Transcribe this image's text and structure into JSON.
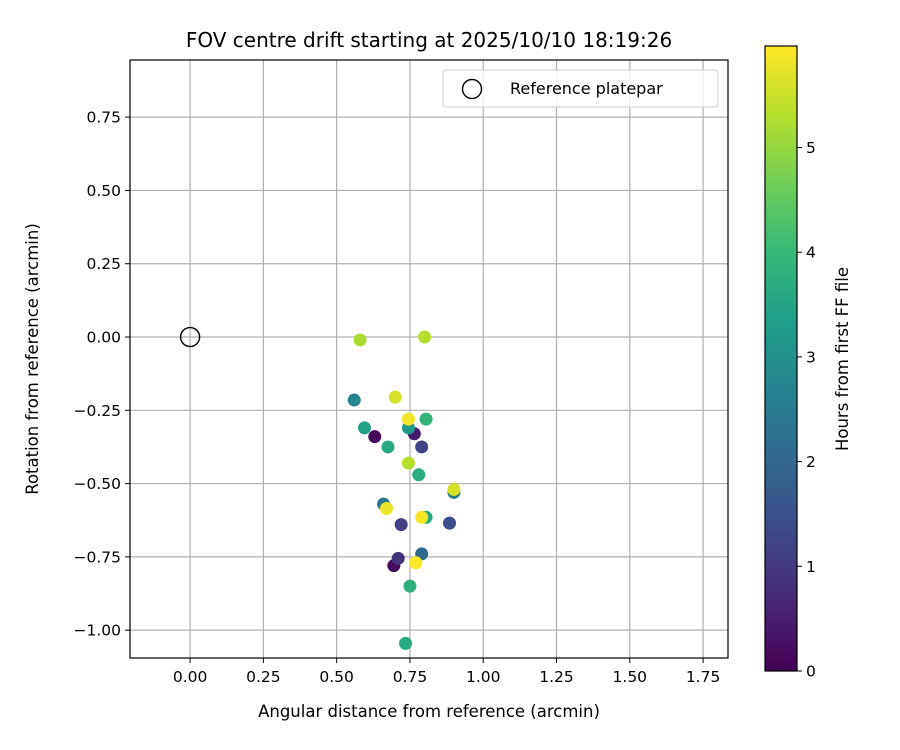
{
  "chart_data": {
    "type": "scatter",
    "title": "FOV centre drift starting at 2025/10/10 18:19:26",
    "xlabel": "Angular distance from reference (arcmin)",
    "ylabel": "Rotation from reference (arcmin)",
    "xlim": [
      -0.205,
      1.835
    ],
    "ylim": [
      -1.095,
      0.945
    ],
    "x_ticks": [
      0.0,
      0.25,
      0.5,
      0.75,
      1.0,
      1.25,
      1.5,
      1.75
    ],
    "x_tick_labels": [
      "0.00",
      "0.25",
      "0.50",
      "0.75",
      "1.00",
      "1.25",
      "1.50",
      "1.75"
    ],
    "y_ticks": [
      0.75,
      0.5,
      0.25,
      0.0,
      -0.25,
      -0.5,
      -0.75,
      -1.0
    ],
    "y_tick_labels": [
      "0.75",
      "0.50",
      "0.25",
      "0.00",
      "−0.25",
      "−0.50",
      "−0.75",
      "−1.00"
    ],
    "grid": true,
    "colorbar": {
      "label": "Hours from first FF file",
      "range": [
        0,
        5.97
      ],
      "ticks": [
        0,
        1,
        2,
        3,
        4,
        5
      ],
      "tick_labels": [
        "0",
        "1",
        "2",
        "3",
        "4",
        "5"
      ],
      "colormap": "viridis"
    },
    "legend": {
      "label": "Reference platepar",
      "placement": "top-right"
    },
    "reference_point": {
      "x": 0.0,
      "y": 0.0
    },
    "points": [
      {
        "x": 0.63,
        "y": -0.34,
        "hours": 0.1
      },
      {
        "x": 0.695,
        "y": -0.78,
        "hours": 0.2
      },
      {
        "x": 0.765,
        "y": -0.33,
        "hours": 0.45
      },
      {
        "x": 0.71,
        "y": -0.755,
        "hours": 0.9
      },
      {
        "x": 0.72,
        "y": -0.64,
        "hours": 1.1
      },
      {
        "x": 0.79,
        "y": -0.375,
        "hours": 1.2
      },
      {
        "x": 0.885,
        "y": -0.635,
        "hours": 1.4
      },
      {
        "x": 0.79,
        "y": -0.74,
        "hours": 2.0
      },
      {
        "x": 0.66,
        "y": -0.57,
        "hours": 2.3
      },
      {
        "x": 0.9,
        "y": -0.53,
        "hours": 2.6
      },
      {
        "x": 0.56,
        "y": -0.215,
        "hours": 2.7
      },
      {
        "x": 0.745,
        "y": -0.31,
        "hours": 3.2
      },
      {
        "x": 0.595,
        "y": -0.31,
        "hours": 3.4
      },
      {
        "x": 0.805,
        "y": -0.615,
        "hours": 3.6
      },
      {
        "x": 0.675,
        "y": -0.375,
        "hours": 3.6
      },
      {
        "x": 0.735,
        "y": -1.045,
        "hours": 3.6
      },
      {
        "x": 0.78,
        "y": -0.47,
        "hours": 3.7
      },
      {
        "x": 0.75,
        "y": -0.85,
        "hours": 3.8
      },
      {
        "x": 0.805,
        "y": -0.28,
        "hours": 3.9
      },
      {
        "x": 0.58,
        "y": -0.01,
        "hours": 5.2
      },
      {
        "x": 0.8,
        "y": 0.0,
        "hours": 5.3
      },
      {
        "x": 0.745,
        "y": -0.43,
        "hours": 5.3
      },
      {
        "x": 0.7,
        "y": -0.205,
        "hours": 5.6
      },
      {
        "x": 0.9,
        "y": -0.52,
        "hours": 5.6
      },
      {
        "x": 0.67,
        "y": -0.585,
        "hours": 5.8
      },
      {
        "x": 0.745,
        "y": -0.28,
        "hours": 5.85
      },
      {
        "x": 0.79,
        "y": -0.615,
        "hours": 5.9
      },
      {
        "x": 0.77,
        "y": -0.77,
        "hours": 5.95
      }
    ]
  },
  "colors": {
    "grid": "#b0b0b0",
    "axis": "#000000",
    "background": "#ffffff",
    "legend_border": "#cccccc"
  }
}
